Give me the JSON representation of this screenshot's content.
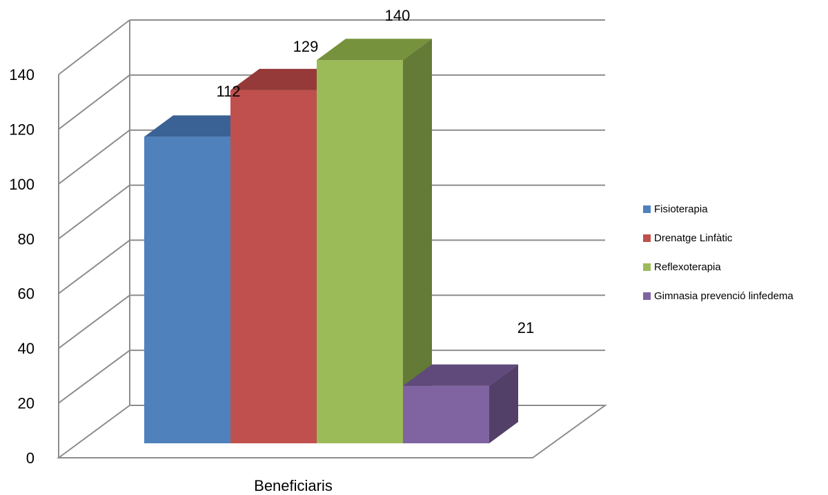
{
  "chart_data": {
    "type": "bar",
    "style": "3d-clustered-column",
    "categories": [
      "Beneficiaris"
    ],
    "series": [
      {
        "name": "Fisioterapia",
        "values": [
          112
        ],
        "color": "#4F81BD",
        "top": "#3B6294",
        "side": "#375B8A"
      },
      {
        "name": "Drenatge Linfàtic",
        "values": [
          129
        ],
        "color": "#C0504D",
        "top": "#953A38",
        "side": "#8C3836"
      },
      {
        "name": "Reflexoterapia",
        "values": [
          140
        ],
        "color": "#9BBB59",
        "top": "#76923C",
        "side": "#647A37"
      },
      {
        "name": "Gimnasia prevenció linfedema",
        "values": [
          21
        ],
        "color": "#8064A2",
        "top": "#5F4A7B",
        "side": "#534068"
      }
    ],
    "data_labels": [
      "112",
      "129",
      "140",
      "21"
    ],
    "ylim": [
      0,
      140
    ],
    "yticks": [
      "0",
      "20",
      "40",
      "60",
      "80",
      "100",
      "120",
      "140"
    ],
    "grid": true,
    "legend_position": "right",
    "title": "",
    "xlabel": "",
    "ylabel": ""
  }
}
